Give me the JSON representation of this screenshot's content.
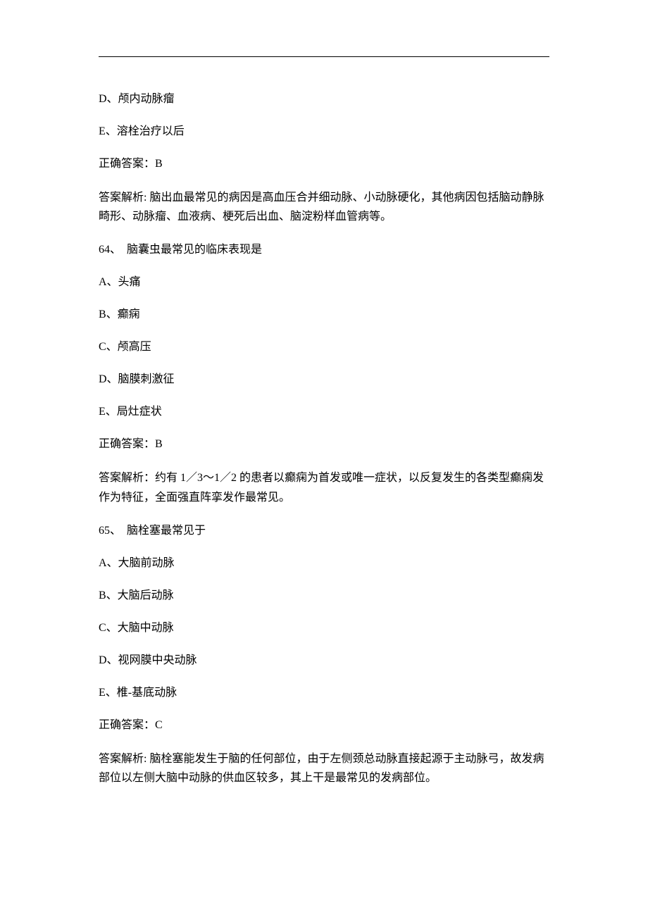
{
  "q63_partial": {
    "option_d": "D、颅内动脉瘤",
    "option_e": "E、溶栓治疗以后",
    "correct": "正确答案：B",
    "explanation": "答案解析: 脑出血最常见的病因是高血压合并细动脉、小动脉硬化，其他病因包括脑动静脉畸形、动脉瘤、血液病、梗死后出血、脑淀粉样血管病等。"
  },
  "q64": {
    "question": "64、　脑囊虫最常见的临床表现是",
    "option_a": "A、头痛",
    "option_b": "B、癫痫",
    "option_c": "C、颅高压",
    "option_d": "D、脑膜刺激征",
    "option_e": "E、局灶症状",
    "correct": "正确答案：B",
    "explanation": "答案解析：约有 1／3～1／2 的患者以癫痫为首发或唯一症状，以反复发生的各类型癫痫发作为特征，全面强直阵挛发作最常见。"
  },
  "q65": {
    "question": "65、　脑栓塞最常见于",
    "option_a": "A、大脑前动脉",
    "option_b": "B、大脑后动脉",
    "option_c": "C、大脑中动脉",
    "option_d": "D、视网膜中央动脉",
    "option_e": "E、椎-基底动脉",
    "correct": "正确答案：C",
    "explanation": "答案解析: 脑栓塞能发生于脑的任何部位，由于左侧颈总动脉直接起源于主动脉弓，故发病部位以左侧大脑中动脉的供血区较多，其上干是最常见的发病部位。"
  }
}
